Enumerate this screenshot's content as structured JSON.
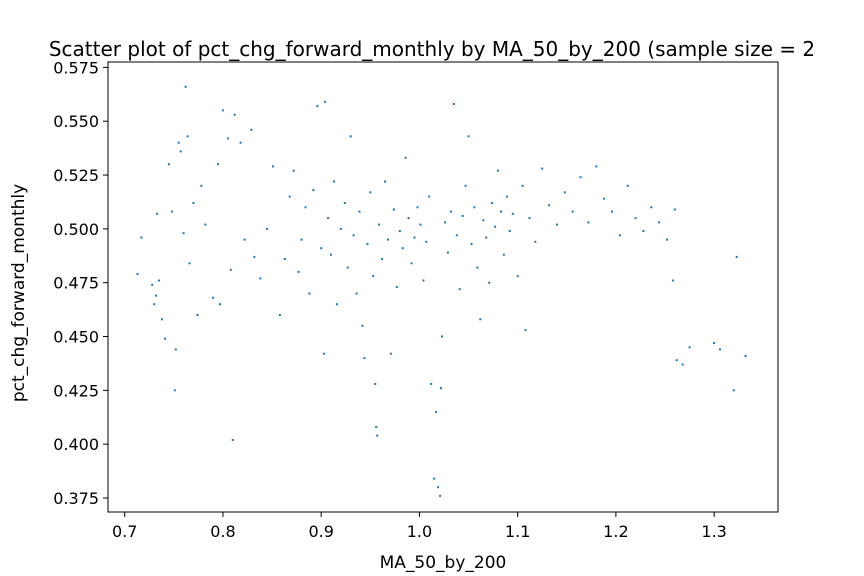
{
  "chart_data": {
    "type": "scatter",
    "title": "Scatter plot of pct_chg_forward_monthly by MA_50_by_200 (sample size = 2",
    "xlabel": "MA_50_by_200",
    "ylabel": "pct_chg_forward_monthly",
    "xlim": [
      0.683,
      1.365
    ],
    "ylim": [
      0.3685,
      0.5775
    ],
    "xticks": [
      0.7,
      0.8,
      0.9,
      1.0,
      1.1,
      1.2,
      1.3
    ],
    "xtick_labels": [
      "0.7",
      "0.8",
      "0.9",
      "1.0",
      "1.1",
      "1.2",
      "1.3"
    ],
    "yticks": [
      0.375,
      0.4,
      0.425,
      0.45,
      0.475,
      0.5,
      0.525,
      0.55,
      0.575
    ],
    "ytick_labels": [
      "0.375",
      "0.400",
      "0.425",
      "0.450",
      "0.475",
      "0.500",
      "0.525",
      "0.550",
      "0.575"
    ],
    "grid": false,
    "marker_color": "#1f77b4",
    "series": [
      {
        "values": [
          {
            "x": 0.713,
            "y": 0.479
          },
          {
            "x": 0.717,
            "y": 0.496
          },
          {
            "x": 0.728,
            "y": 0.474
          },
          {
            "x": 0.73,
            "y": 0.465
          },
          {
            "x": 0.732,
            "y": 0.469
          },
          {
            "x": 0.733,
            "y": 0.507
          },
          {
            "x": 0.735,
            "y": 0.476
          },
          {
            "x": 0.738,
            "y": 0.458
          },
          {
            "x": 0.741,
            "y": 0.449
          },
          {
            "x": 0.745,
            "y": 0.53
          },
          {
            "x": 0.748,
            "y": 0.508
          },
          {
            "x": 0.751,
            "y": 0.425
          },
          {
            "x": 0.752,
            "y": 0.444
          },
          {
            "x": 0.755,
            "y": 0.54
          },
          {
            "x": 0.757,
            "y": 0.536
          },
          {
            "x": 0.76,
            "y": 0.498
          },
          {
            "x": 0.762,
            "y": 0.566
          },
          {
            "x": 0.764,
            "y": 0.543
          },
          {
            "x": 0.766,
            "y": 0.484
          },
          {
            "x": 0.77,
            "y": 0.512
          },
          {
            "x": 0.774,
            "y": 0.46
          },
          {
            "x": 0.778,
            "y": 0.52
          },
          {
            "x": 0.782,
            "y": 0.502
          },
          {
            "x": 0.79,
            "y": 0.468
          },
          {
            "x": 0.795,
            "y": 0.53
          },
          {
            "x": 0.797,
            "y": 0.465
          },
          {
            "x": 0.8,
            "y": 0.555
          },
          {
            "x": 0.805,
            "y": 0.542
          },
          {
            "x": 0.808,
            "y": 0.481
          },
          {
            "x": 0.81,
            "y": 0.402
          },
          {
            "x": 0.812,
            "y": 0.553
          },
          {
            "x": 0.818,
            "y": 0.54
          },
          {
            "x": 0.822,
            "y": 0.495
          },
          {
            "x": 0.829,
            "y": 0.546
          },
          {
            "x": 0.832,
            "y": 0.487
          },
          {
            "x": 0.838,
            "y": 0.477
          },
          {
            "x": 0.845,
            "y": 0.5
          },
          {
            "x": 0.851,
            "y": 0.529
          },
          {
            "x": 0.858,
            "y": 0.46
          },
          {
            "x": 0.863,
            "y": 0.486
          },
          {
            "x": 0.868,
            "y": 0.515
          },
          {
            "x": 0.872,
            "y": 0.527
          },
          {
            "x": 0.877,
            "y": 0.48
          },
          {
            "x": 0.88,
            "y": 0.495
          },
          {
            "x": 0.884,
            "y": 0.51
          },
          {
            "x": 0.888,
            "y": 0.47
          },
          {
            "x": 0.892,
            "y": 0.518
          },
          {
            "x": 0.896,
            "y": 0.557
          },
          {
            "x": 0.9,
            "y": 0.491
          },
          {
            "x": 0.903,
            "y": 0.442
          },
          {
            "x": 0.904,
            "y": 0.559
          },
          {
            "x": 0.907,
            "y": 0.505
          },
          {
            "x": 0.91,
            "y": 0.488
          },
          {
            "x": 0.913,
            "y": 0.522
          },
          {
            "x": 0.916,
            "y": 0.465
          },
          {
            "x": 0.92,
            "y": 0.5
          },
          {
            "x": 0.924,
            "y": 0.512
          },
          {
            "x": 0.927,
            "y": 0.482
          },
          {
            "x": 0.93,
            "y": 0.543
          },
          {
            "x": 0.933,
            "y": 0.497
          },
          {
            "x": 0.936,
            "y": 0.47
          },
          {
            "x": 0.939,
            "y": 0.508
          },
          {
            "x": 0.942,
            "y": 0.455
          },
          {
            "x": 0.944,
            "y": 0.44
          },
          {
            "x": 0.947,
            "y": 0.493
          },
          {
            "x": 0.95,
            "y": 0.517
          },
          {
            "x": 0.953,
            "y": 0.478
          },
          {
            "x": 0.955,
            "y": 0.428
          },
          {
            "x": 0.956,
            "y": 0.408
          },
          {
            "x": 0.957,
            "y": 0.404
          },
          {
            "x": 0.959,
            "y": 0.502
          },
          {
            "x": 0.962,
            "y": 0.486
          },
          {
            "x": 0.965,
            "y": 0.522
          },
          {
            "x": 0.968,
            "y": 0.495
          },
          {
            "x": 0.971,
            "y": 0.442
          },
          {
            "x": 0.974,
            "y": 0.509
          },
          {
            "x": 0.977,
            "y": 0.473
          },
          {
            "x": 0.98,
            "y": 0.499
          },
          {
            "x": 0.983,
            "y": 0.491
          },
          {
            "x": 0.986,
            "y": 0.533
          },
          {
            "x": 0.989,
            "y": 0.505
          },
          {
            "x": 0.992,
            "y": 0.484
          },
          {
            "x": 0.995,
            "y": 0.496
          },
          {
            "x": 0.998,
            "y": 0.51
          },
          {
            "x": 1.001,
            "y": 0.502
          },
          {
            "x": 1.004,
            "y": 0.476
          },
          {
            "x": 1.007,
            "y": 0.494
          },
          {
            "x": 1.01,
            "y": 0.515
          },
          {
            "x": 1.012,
            "y": 0.428
          },
          {
            "x": 1.015,
            "y": 0.384
          },
          {
            "x": 1.017,
            "y": 0.415
          },
          {
            "x": 1.019,
            "y": 0.38
          },
          {
            "x": 1.021,
            "y": 0.376
          },
          {
            "x": 1.022,
            "y": 0.426
          },
          {
            "x": 1.023,
            "y": 0.45
          },
          {
            "x": 1.026,
            "y": 0.503
          },
          {
            "x": 1.029,
            "y": 0.489
          },
          {
            "x": 1.032,
            "y": 0.508
          },
          {
            "x": 1.035,
            "y": 0.558
          },
          {
            "x": 1.038,
            "y": 0.497
          },
          {
            "x": 1.041,
            "y": 0.472
          },
          {
            "x": 1.044,
            "y": 0.506
          },
          {
            "x": 1.047,
            "y": 0.52
          },
          {
            "x": 1.05,
            "y": 0.543
          },
          {
            "x": 1.053,
            "y": 0.493
          },
          {
            "x": 1.056,
            "y": 0.51
          },
          {
            "x": 1.059,
            "y": 0.482
          },
          {
            "x": 1.062,
            "y": 0.458
          },
          {
            "x": 1.065,
            "y": 0.504
          },
          {
            "x": 1.068,
            "y": 0.496
          },
          {
            "x": 1.071,
            "y": 0.475
          },
          {
            "x": 1.074,
            "y": 0.512
          },
          {
            "x": 1.077,
            "y": 0.501
          },
          {
            "x": 1.08,
            "y": 0.527
          },
          {
            "x": 1.083,
            "y": 0.508
          },
          {
            "x": 1.086,
            "y": 0.488
          },
          {
            "x": 1.089,
            "y": 0.515
          },
          {
            "x": 1.092,
            "y": 0.499
          },
          {
            "x": 1.095,
            "y": 0.507
          },
          {
            "x": 1.1,
            "y": 0.478
          },
          {
            "x": 1.105,
            "y": 0.52
          },
          {
            "x": 1.108,
            "y": 0.453
          },
          {
            "x": 1.112,
            "y": 0.505
          },
          {
            "x": 1.118,
            "y": 0.494
          },
          {
            "x": 1.125,
            "y": 0.528
          },
          {
            "x": 1.132,
            "y": 0.511
          },
          {
            "x": 1.14,
            "y": 0.502
          },
          {
            "x": 1.148,
            "y": 0.517
          },
          {
            "x": 1.156,
            "y": 0.508
          },
          {
            "x": 1.164,
            "y": 0.524
          },
          {
            "x": 1.172,
            "y": 0.503
          },
          {
            "x": 1.18,
            "y": 0.529
          },
          {
            "x": 1.188,
            "y": 0.514
          },
          {
            "x": 1.196,
            "y": 0.508
          },
          {
            "x": 1.204,
            "y": 0.497
          },
          {
            "x": 1.212,
            "y": 0.52
          },
          {
            "x": 1.22,
            "y": 0.505
          },
          {
            "x": 1.228,
            "y": 0.499
          },
          {
            "x": 1.236,
            "y": 0.51
          },
          {
            "x": 1.244,
            "y": 0.503
          },
          {
            "x": 1.252,
            "y": 0.495
          },
          {
            "x": 1.258,
            "y": 0.476
          },
          {
            "x": 1.26,
            "y": 0.509
          },
          {
            "x": 1.262,
            "y": 0.439
          },
          {
            "x": 1.268,
            "y": 0.437
          },
          {
            "x": 1.275,
            "y": 0.445
          },
          {
            "x": 1.3,
            "y": 0.447
          },
          {
            "x": 1.306,
            "y": 0.444
          },
          {
            "x": 1.32,
            "y": 0.425
          },
          {
            "x": 1.323,
            "y": 0.487
          },
          {
            "x": 1.332,
            "y": 0.441
          }
        ]
      }
    ]
  }
}
